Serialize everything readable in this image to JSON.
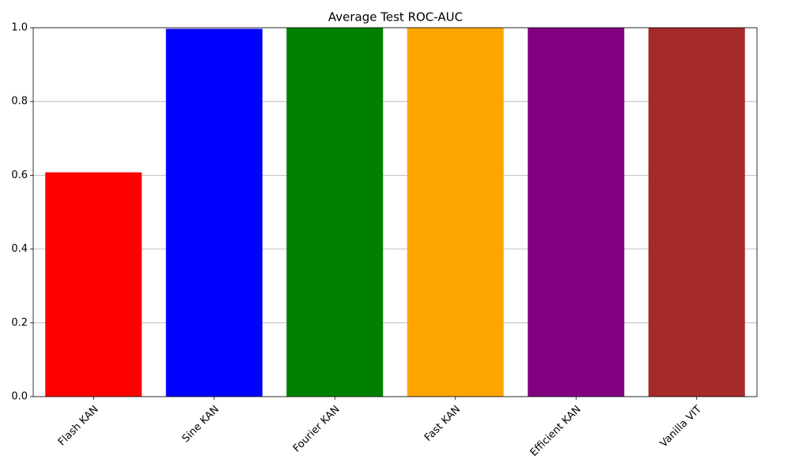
{
  "chart_data": {
    "type": "bar",
    "title": "Average Test ROC-AUC",
    "categories": [
      "Flash KAN",
      "Sine KAN",
      "Fourier KAN",
      "Fast KAN",
      "Efficient KAN",
      "Vanilla VIT"
    ],
    "values": [
      0.608,
      0.997,
      1.0,
      1.0,
      1.0,
      1.0
    ],
    "colors": [
      "red",
      "blue",
      "green",
      "orange",
      "purple",
      "brown"
    ],
    "ylim": [
      0,
      1
    ],
    "yticks": [
      {
        "value": 0,
        "label": "0.0"
      },
      0.2,
      0.4,
      0.6,
      0.8,
      {
        "value": 1,
        "label": "1.0"
      }
    ],
    "grid": true
  }
}
